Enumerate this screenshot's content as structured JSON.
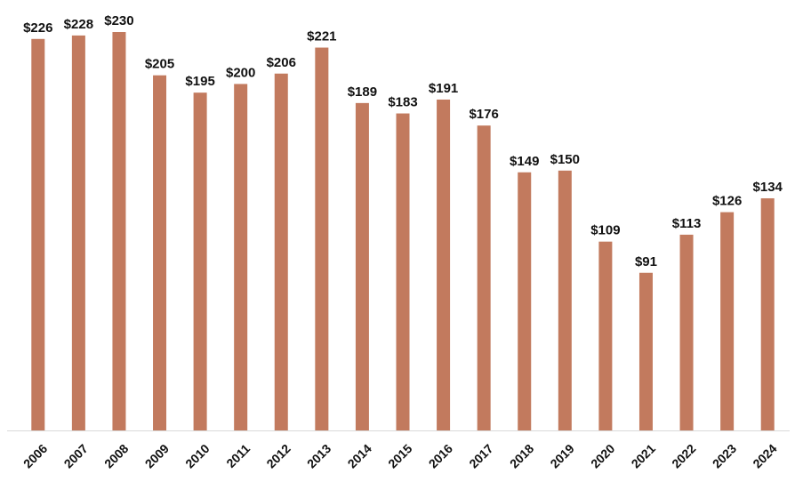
{
  "chart_data": {
    "type": "bar",
    "categories": [
      "2006",
      "2007",
      "2008",
      "2009",
      "2010",
      "2011",
      "2012",
      "2013",
      "2014",
      "2015",
      "2016",
      "2017",
      "2018",
      "2019",
      "2020",
      "2021",
      "2022",
      "2023",
      "2024"
    ],
    "values": [
      226,
      228,
      230,
      205,
      195,
      200,
      206,
      221,
      189,
      183,
      191,
      176,
      149,
      150,
      109,
      91,
      113,
      126,
      134
    ],
    "value_labels": [
      "$226",
      "$228",
      "$230",
      "$205",
      "$195",
      "$200",
      "$206",
      "$221",
      "$189",
      "$183",
      "$191",
      "$176",
      "$149",
      "$150",
      "$109",
      "$91",
      "$113",
      "$126",
      "$134"
    ],
    "title": "",
    "xlabel": "",
    "ylabel": "",
    "ylim": [
      0,
      230
    ],
    "grid": false,
    "legend": "none",
    "bar_color": "#C27A5E",
    "axis_color": "#D9D9D9"
  }
}
